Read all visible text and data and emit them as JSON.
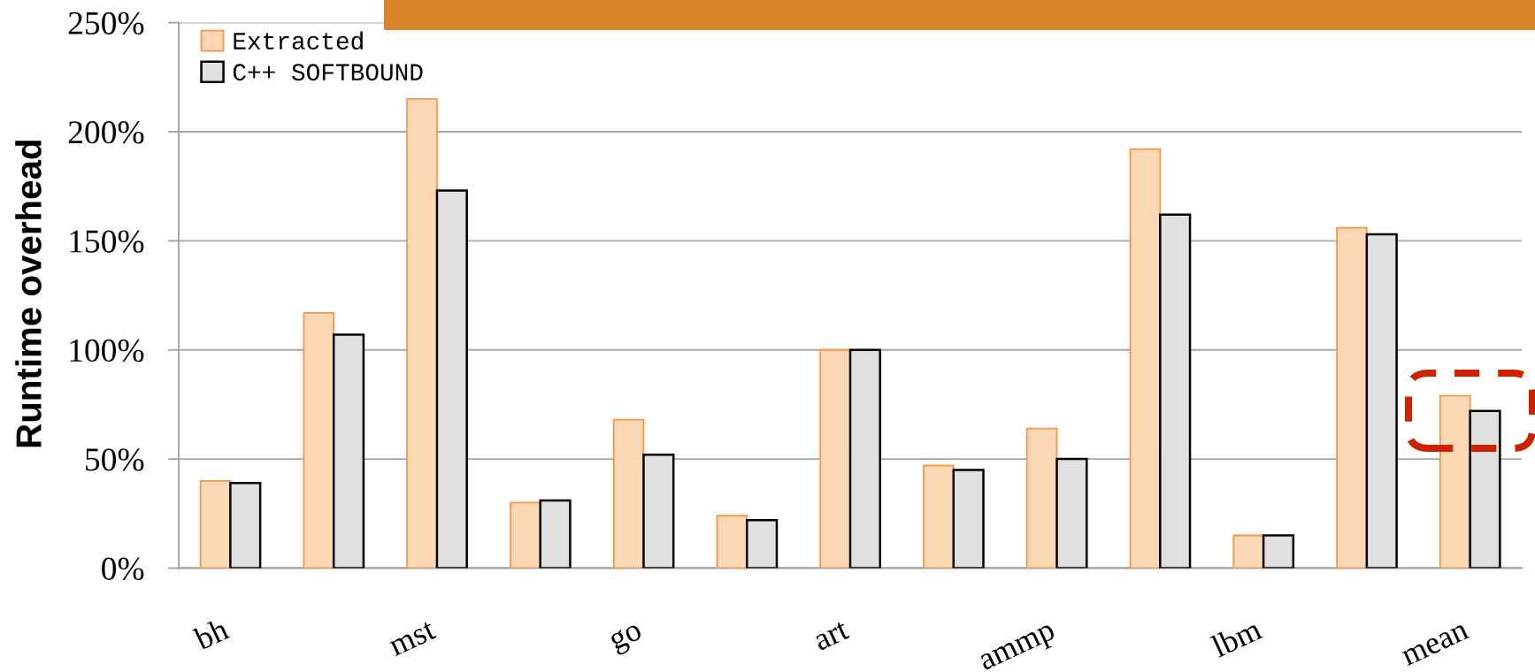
{
  "chart_data": {
    "type": "bar",
    "ylabel": "Runtime overhead",
    "categories": [
      "bh",
      null,
      "mst",
      null,
      "go",
      null,
      "art",
      null,
      "ammp",
      null,
      "lbm",
      null,
      "mean"
    ],
    "series": [
      {
        "name": "Extracted",
        "color": "#fdd8b5",
        "values": [
          40,
          117,
          215,
          30,
          68,
          24,
          100,
          47,
          64,
          192,
          15,
          156,
          79
        ]
      },
      {
        "name": "C++ SOFTBOUND",
        "color": "#e0e0e0",
        "values": [
          39,
          107,
          173,
          31,
          52,
          22,
          100,
          45,
          50,
          162,
          15,
          153,
          72
        ]
      }
    ],
    "ylim": [
      0,
      250
    ],
    "yticks": [
      {
        "value": 0,
        "label": "0%"
      },
      {
        "value": 50,
        "label": "50%"
      },
      {
        "value": 100,
        "label": "100%"
      },
      {
        "value": 150,
        "label": "150%"
      },
      {
        "value": 200,
        "label": "200%"
      },
      {
        "value": 250,
        "label": "250%"
      }
    ],
    "grid": "y",
    "legend": "top left"
  }
}
